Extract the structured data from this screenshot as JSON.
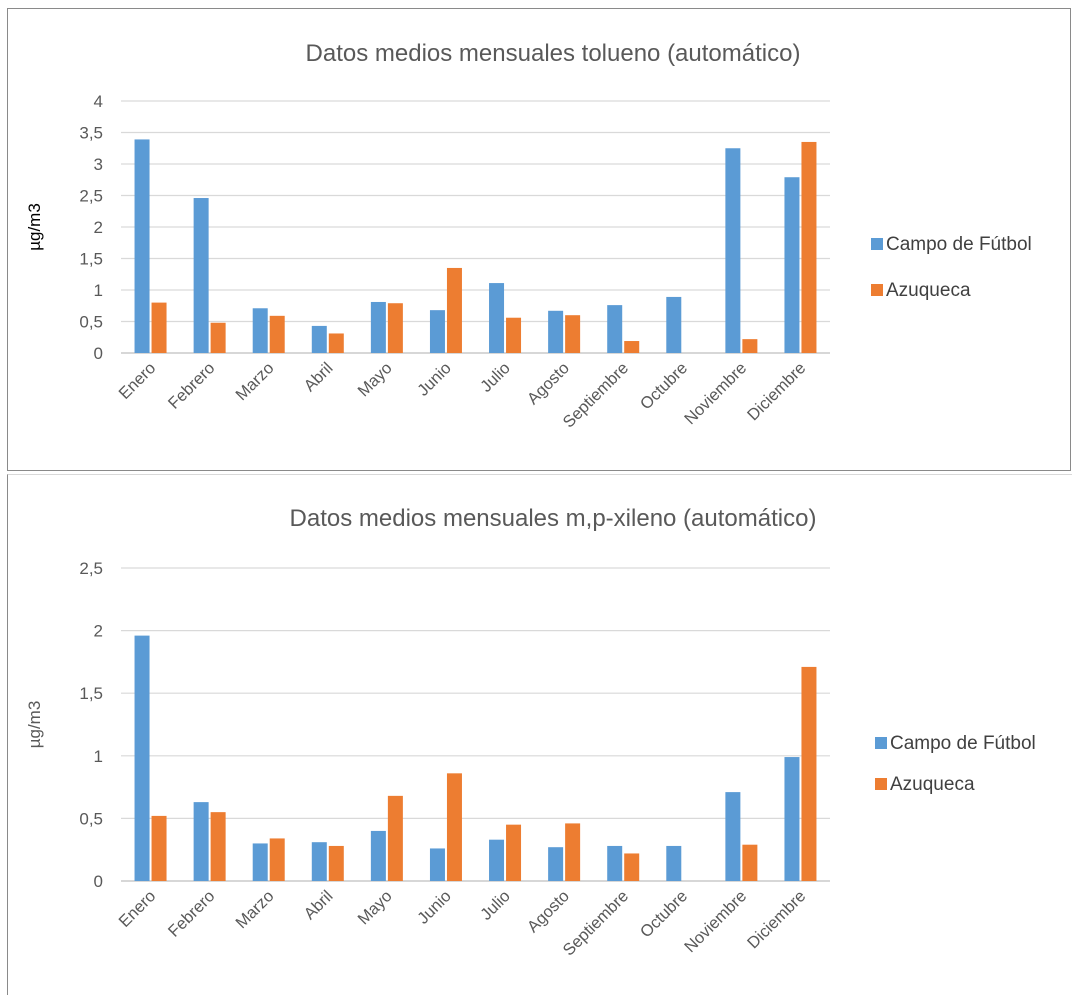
{
  "chart_data": [
    {
      "type": "bar",
      "title": "Datos medios mensuales tolueno (automático)",
      "xlabel": "",
      "ylabel": "µg/m3",
      "ylim": [
        0,
        4
      ],
      "yticks": [
        "0",
        "0,5",
        "1",
        "1,5",
        "2",
        "2,5",
        "3",
        "3,5",
        "4"
      ],
      "grid": true,
      "legend_position": "right",
      "categories": [
        "Enero",
        "Febrero",
        "Marzo",
        "Abril",
        "Mayo",
        "Junio",
        "Julio",
        "Agosto",
        "Septiembre",
        "Octubre",
        "Noviembre",
        "Diciembre"
      ],
      "series": [
        {
          "name": "Campo de Fútbol",
          "color": "#5b9bd5",
          "values": [
            3.39,
            2.46,
            0.71,
            0.43,
            0.81,
            0.68,
            1.11,
            0.67,
            0.76,
            0.89,
            3.25,
            2.79
          ]
        },
        {
          "name": "Azuqueca",
          "color": "#ed7d31",
          "values": [
            0.8,
            0.48,
            0.59,
            0.31,
            0.79,
            1.35,
            0.56,
            0.6,
            0.19,
            null,
            0.22,
            3.35
          ]
        }
      ]
    },
    {
      "type": "bar",
      "title": "Datos medios mensuales m,p-xileno (automático)",
      "xlabel": "",
      "ylabel": "µg/m3",
      "ylim": [
        0,
        2.5
      ],
      "yticks": [
        "0",
        "0,5",
        "1",
        "1,5",
        "2",
        "2,5"
      ],
      "grid": true,
      "legend_position": "right",
      "categories": [
        "Enero",
        "Febrero",
        "Marzo",
        "Abril",
        "Mayo",
        "Junio",
        "Julio",
        "Agosto",
        "Septiembre",
        "Octubre",
        "Noviembre",
        "Diciembre"
      ],
      "series": [
        {
          "name": "Campo de Fútbol",
          "color": "#5b9bd5",
          "values": [
            1.96,
            0.63,
            0.3,
            0.31,
            0.4,
            0.26,
            0.33,
            0.27,
            0.28,
            0.28,
            0.71,
            0.99
          ]
        },
        {
          "name": "Azuqueca",
          "color": "#ed7d31",
          "values": [
            0.52,
            0.55,
            0.34,
            0.28,
            0.68,
            0.86,
            0.45,
            0.46,
            0.22,
            null,
            0.29,
            1.71
          ]
        }
      ]
    }
  ]
}
